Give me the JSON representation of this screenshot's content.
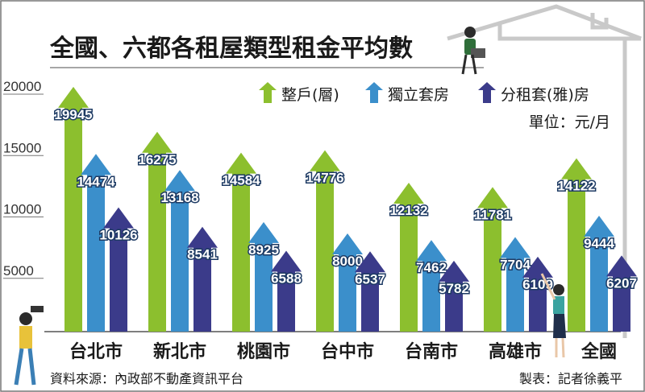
{
  "chart_data": {
    "type": "bar",
    "title": "全國、六都各租屋類型租金平均數",
    "unit": "單位：元/月",
    "categories": [
      "台北市",
      "新北市",
      "桃園市",
      "台中市",
      "台南市",
      "高雄市",
      "全國"
    ],
    "series": [
      {
        "name": "整戶(層)",
        "color": "#8cbf2e",
        "values": [
          19945,
          16275,
          14584,
          14776,
          12132,
          11781,
          14122
        ]
      },
      {
        "name": "獨立套房",
        "color": "#3b8fcb",
        "values": [
          14474,
          13168,
          8925,
          8000,
          7462,
          7704,
          9444
        ]
      },
      {
        "name": "分租套(雅)房",
        "color": "#3b3b8a",
        "values": [
          10126,
          8541,
          6588,
          6537,
          5782,
          6109,
          6207
        ]
      }
    ],
    "ylim": [
      0,
      20000
    ],
    "yticks": [
      5000,
      10000,
      15000,
      20000
    ],
    "legend_position": "top-right",
    "grid": false,
    "source": "資料來源：內政部不動產資訊平台",
    "credit": "製表：記者徐義平"
  }
}
